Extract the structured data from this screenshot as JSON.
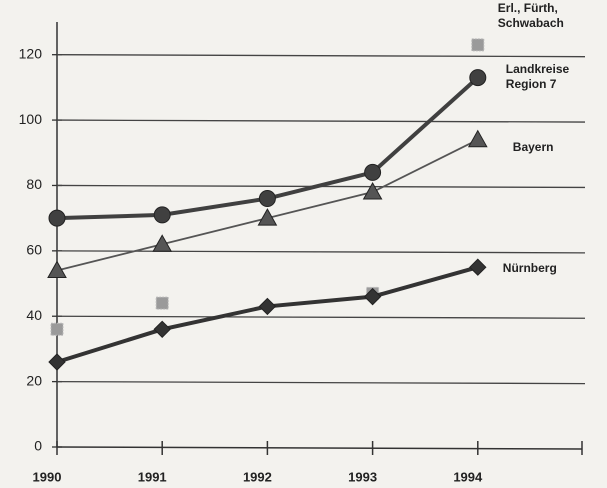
{
  "chart_data": {
    "type": "line",
    "categories": [
      "1990",
      "1991",
      "1992",
      "1993",
      "1994"
    ],
    "series": [
      {
        "name": "Erl., Fürth, Schwabach",
        "color": "#9a9a9a",
        "marker": "square",
        "line": false,
        "values": [
          36,
          44,
          null,
          47,
          123
        ]
      },
      {
        "name": "Landkreise Region 7",
        "color": "#404040",
        "marker": "circle",
        "line": true,
        "values": [
          70,
          71,
          76,
          84,
          113
        ]
      },
      {
        "name": "Bayern",
        "color": "#555555",
        "marker": "triangle",
        "line": true,
        "values": [
          54,
          62,
          70,
          78,
          94
        ]
      },
      {
        "name": "Nürnberg",
        "color": "#333333",
        "marker": "diamond",
        "line": true,
        "values": [
          26,
          36,
          43,
          46,
          55
        ]
      }
    ],
    "ylim": [
      0,
      130
    ],
    "yticks": [
      0,
      20,
      40,
      60,
      80,
      100,
      120
    ],
    "grid": true
  }
}
